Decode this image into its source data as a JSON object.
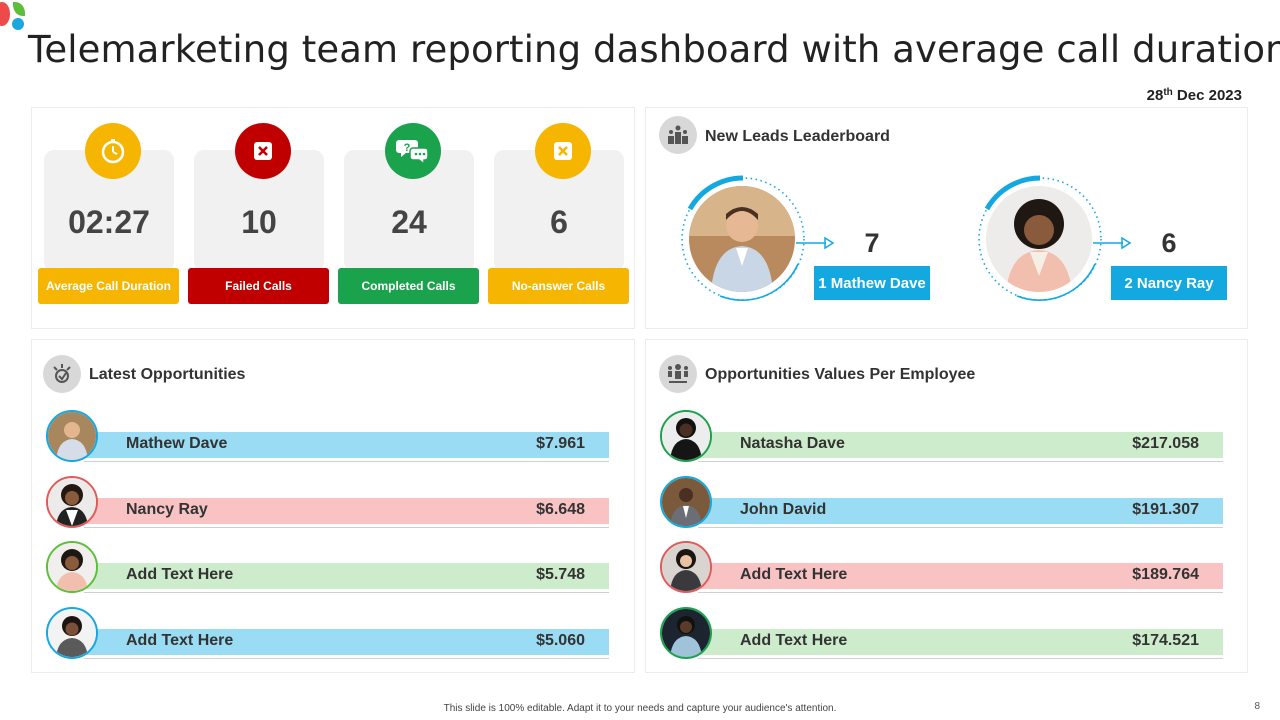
{
  "title": "Telemarketing team reporting dashboard with average call duration",
  "date": {
    "day": "28",
    "suffix": "th",
    "rest": " Dec 2023"
  },
  "kpis": [
    {
      "value": "02:27",
      "label": "Average Call Duration",
      "color": "#f6b500",
      "icon": "stopwatch-icon"
    },
    {
      "value": "10",
      "label": "Failed Calls",
      "color": "#c00000",
      "icon": "x-mark-icon"
    },
    {
      "value": "24",
      "label": "Completed Calls",
      "color": "#1aa24d",
      "icon": "chat-bubbles-icon"
    },
    {
      "value": "6",
      "label": "No-answer Calls",
      "color": "#f6b500",
      "icon": "x-mark-icon"
    }
  ],
  "leaderboard": {
    "title": "New Leads Leaderboard",
    "entries": [
      {
        "count": "7",
        "label": "1 Mathew Dave"
      },
      {
        "count": "6",
        "label": "2 Nancy Ray"
      }
    ],
    "accent": "#14a8e0"
  },
  "latest": {
    "title": "Latest Opportunities",
    "rows": [
      {
        "name": "Mathew Dave",
        "value": "$7.961",
        "color": "#9adcf3",
        "ring": "#14a8e0"
      },
      {
        "name": "Nancy Ray",
        "value": "$6.648",
        "color": "#f9c3c3",
        "ring": "#e05a5a"
      },
      {
        "name": "Add  Text Here",
        "value": "$5.748",
        "color": "#cdeccb",
        "ring": "#5cbf3a"
      },
      {
        "name": "Add  Text Here",
        "value": "$5.060",
        "color": "#9adcf3",
        "ring": "#14a8e0"
      }
    ]
  },
  "values": {
    "title": "Opportunities  Values Per Employee",
    "rows": [
      {
        "name": "Natasha Dave",
        "value": "$217.058",
        "color": "#cdeccb",
        "ring": "#1aa24d"
      },
      {
        "name": "John David",
        "value": "$191.307",
        "color": "#9adcf3",
        "ring": "#14a8e0"
      },
      {
        "name": "Add  Text Here",
        "value": "$189.764",
        "color": "#f9c3c3",
        "ring": "#e05a5a"
      },
      {
        "name": "Add  Text Here",
        "value": "$174.521",
        "color": "#cdeccb",
        "ring": "#1aa24d"
      }
    ]
  },
  "footer": "This slide is 100% editable.  Adapt it to your needs and capture your audience's attention.",
  "page_number": "8"
}
